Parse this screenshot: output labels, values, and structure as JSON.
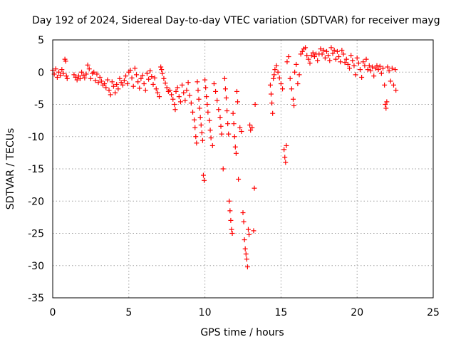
{
  "chart_data": {
    "type": "scatter",
    "title": "Day 192 of 2024, Sidereal Day-to-day VTEC variation (SDTVAR) for receiver mayg",
    "xlabel": "GPS time / hours",
    "ylabel": "SDTVAR / TECUs",
    "xlim": [
      0,
      25
    ],
    "ylim": [
      -35,
      5
    ],
    "xticks": [
      "0",
      "5",
      "10",
      "15",
      "20",
      "25"
    ],
    "yticks": [
      "5",
      "0",
      "-5",
      "-10",
      "-15",
      "-20",
      "-25",
      "-30",
      "-35"
    ],
    "grid": true,
    "marker": "+",
    "color": "#ff0000",
    "series": [
      {
        "name": "SDTVAR",
        "points": [
          [
            0.0,
            0.3
          ],
          [
            0.1,
            -0.3
          ],
          [
            0.2,
            0.5
          ],
          [
            0.3,
            -0.8
          ],
          [
            0.4,
            0.0
          ],
          [
            0.5,
            -0.5
          ],
          [
            0.6,
            0.4
          ],
          [
            0.7,
            -0.2
          ],
          [
            0.8,
            2.0
          ],
          [
            0.85,
            1.7
          ],
          [
            0.9,
            -0.6
          ],
          [
            0.95,
            -1.0
          ],
          [
            1.4,
            -0.4
          ],
          [
            1.5,
            -0.8
          ],
          [
            1.6,
            -1.2
          ],
          [
            1.7,
            -0.6
          ],
          [
            1.8,
            -1.0
          ],
          [
            1.9,
            0.0
          ],
          [
            2.0,
            -0.5
          ],
          [
            2.1,
            -0.9
          ],
          [
            2.2,
            -0.3
          ],
          [
            2.3,
            1.1
          ],
          [
            2.4,
            0.5
          ],
          [
            2.5,
            -1.0
          ],
          [
            2.6,
            -0.2
          ],
          [
            2.7,
            0.0
          ],
          [
            2.8,
            -1.3
          ],
          [
            2.9,
            -0.3
          ],
          [
            3.0,
            -1.6
          ],
          [
            3.1,
            -0.8
          ],
          [
            3.2,
            -1.4
          ],
          [
            3.3,
            -2.0
          ],
          [
            3.4,
            -1.8
          ],
          [
            3.5,
            -2.4
          ],
          [
            3.6,
            -1.2
          ],
          [
            3.7,
            -2.8
          ],
          [
            3.8,
            -3.5
          ],
          [
            3.9,
            -1.5
          ],
          [
            4.0,
            -2.2
          ],
          [
            4.1,
            -3.2
          ],
          [
            4.2,
            -1.9
          ],
          [
            4.3,
            -2.6
          ],
          [
            4.4,
            -1.0
          ],
          [
            4.5,
            -1.6
          ],
          [
            4.6,
            -2.0
          ],
          [
            4.7,
            -1.3
          ],
          [
            4.8,
            -0.6
          ],
          [
            4.9,
            -1.8
          ],
          [
            5.0,
            0.0
          ],
          [
            5.1,
            0.3
          ],
          [
            5.2,
            -0.9
          ],
          [
            5.3,
            -2.2
          ],
          [
            5.4,
            0.6
          ],
          [
            5.5,
            -0.4
          ],
          [
            5.6,
            -1.5
          ],
          [
            5.7,
            -2.5
          ],
          [
            5.8,
            -1.0
          ],
          [
            5.9,
            -0.5
          ],
          [
            6.0,
            -1.8
          ],
          [
            6.1,
            -2.8
          ],
          [
            6.2,
            -0.2
          ],
          [
            6.3,
            -1.1
          ],
          [
            6.4,
            0.2
          ],
          [
            6.5,
            -0.7
          ],
          [
            6.6,
            -1.9
          ],
          [
            6.7,
            -0.9
          ],
          [
            6.8,
            -2.6
          ],
          [
            6.9,
            -3.2
          ],
          [
            7.0,
            -3.8
          ],
          [
            7.1,
            0.8
          ],
          [
            7.15,
            0.4
          ],
          [
            7.2,
            -0.2
          ],
          [
            7.3,
            -1.0
          ],
          [
            7.4,
            -1.7
          ],
          [
            7.5,
            -2.4
          ],
          [
            7.6,
            -3.0
          ],
          [
            7.7,
            -2.8
          ],
          [
            7.8,
            -3.5
          ],
          [
            7.9,
            -4.2
          ],
          [
            8.0,
            -5.0
          ],
          [
            8.05,
            -5.8
          ],
          [
            8.1,
            -3.0
          ],
          [
            8.2,
            -2.4
          ],
          [
            8.3,
            -3.8
          ],
          [
            8.4,
            -4.6
          ],
          [
            8.5,
            -2.0
          ],
          [
            8.6,
            -3.2
          ],
          [
            8.7,
            -4.4
          ],
          [
            8.8,
            -2.8
          ],
          [
            8.9,
            -1.6
          ],
          [
            9.0,
            -3.6
          ],
          [
            9.1,
            -4.8
          ],
          [
            9.2,
            -6.2
          ],
          [
            9.3,
            -7.4
          ],
          [
            9.35,
            -8.6
          ],
          [
            9.4,
            -10.0
          ],
          [
            9.45,
            -11.0
          ],
          [
            9.5,
            -1.5
          ],
          [
            9.55,
            -2.8
          ],
          [
            9.6,
            -4.2
          ],
          [
            9.65,
            -5.6
          ],
          [
            9.7,
            -7.0
          ],
          [
            9.75,
            -8.2
          ],
          [
            9.8,
            -9.4
          ],
          [
            9.85,
            -10.6
          ],
          [
            9.9,
            -16.0
          ],
          [
            9.95,
            -16.8
          ],
          [
            10.0,
            -1.2
          ],
          [
            10.05,
            -2.4
          ],
          [
            10.1,
            -3.8
          ],
          [
            10.15,
            -5.0
          ],
          [
            10.2,
            -6.2
          ],
          [
            10.3,
            -7.5
          ],
          [
            10.35,
            -9.0
          ],
          [
            10.4,
            -10.2
          ],
          [
            10.5,
            -11.4
          ],
          [
            10.6,
            -1.8
          ],
          [
            10.7,
            -3.0
          ],
          [
            10.8,
            -4.4
          ],
          [
            10.9,
            -5.8
          ],
          [
            11.0,
            -7.0
          ],
          [
            11.05,
            -8.4
          ],
          [
            11.1,
            -9.6
          ],
          [
            11.2,
            -15.0
          ],
          [
            11.3,
            -1.0
          ],
          [
            11.35,
            -2.6
          ],
          [
            11.4,
            -4.0
          ],
          [
            11.45,
            -6.0
          ],
          [
            11.5,
            -8.0
          ],
          [
            11.55,
            -9.6
          ],
          [
            11.6,
            -20.0
          ],
          [
            11.65,
            -21.5
          ],
          [
            11.7,
            -23.0
          ],
          [
            11.75,
            -24.4
          ],
          [
            11.8,
            -25.0
          ],
          [
            11.85,
            -6.4
          ],
          [
            11.9,
            -8.0
          ],
          [
            11.95,
            -10.0
          ],
          [
            12.0,
            -11.6
          ],
          [
            12.05,
            -12.6
          ],
          [
            12.1,
            -3.0
          ],
          [
            12.15,
            -4.6
          ],
          [
            12.2,
            -16.6
          ],
          [
            12.3,
            -8.6
          ],
          [
            12.4,
            -9.2
          ],
          [
            12.5,
            -21.8
          ],
          [
            12.55,
            -23.2
          ],
          [
            12.6,
            -26.0
          ],
          [
            12.65,
            -27.4
          ],
          [
            12.7,
            -28.2
          ],
          [
            12.75,
            -29.0
          ],
          [
            12.8,
            -30.2
          ],
          [
            12.85,
            -24.4
          ],
          [
            12.9,
            -25.2
          ],
          [
            12.95,
            -8.2
          ],
          [
            13.0,
            -9.0
          ],
          [
            13.1,
            -8.6
          ],
          [
            13.2,
            -24.6
          ],
          [
            13.25,
            -18.0
          ],
          [
            13.3,
            -5.0
          ],
          [
            14.3,
            -2.0
          ],
          [
            14.35,
            -3.4
          ],
          [
            14.4,
            -4.8
          ],
          [
            14.45,
            -6.4
          ],
          [
            14.5,
            -1.0
          ],
          [
            14.55,
            -0.4
          ],
          [
            14.6,
            0.4
          ],
          [
            14.7,
            1.0
          ],
          [
            14.8,
            0.0
          ],
          [
            14.9,
            -0.9
          ],
          [
            15.0,
            -1.8
          ],
          [
            15.1,
            -2.6
          ],
          [
            15.2,
            -12.0
          ],
          [
            15.25,
            -13.2
          ],
          [
            15.3,
            -14.0
          ],
          [
            15.35,
            -11.4
          ],
          [
            15.4,
            1.6
          ],
          [
            15.5,
            2.4
          ],
          [
            15.6,
            -1.0
          ],
          [
            15.7,
            -2.6
          ],
          [
            15.8,
            -4.2
          ],
          [
            15.85,
            -5.2
          ],
          [
            15.9,
            0.0
          ],
          [
            16.0,
            1.2
          ],
          [
            16.1,
            -1.8
          ],
          [
            16.2,
            -0.4
          ],
          [
            16.3,
            2.8
          ],
          [
            16.4,
            3.2
          ],
          [
            16.5,
            3.6
          ],
          [
            16.6,
            3.8
          ],
          [
            16.7,
            2.6
          ],
          [
            16.8,
            2.0
          ],
          [
            16.9,
            1.4
          ],
          [
            17.0,
            2.6
          ],
          [
            17.1,
            3.0
          ],
          [
            17.2,
            2.4
          ],
          [
            17.3,
            2.8
          ],
          [
            17.4,
            1.8
          ],
          [
            17.5,
            2.8
          ],
          [
            17.6,
            3.6
          ],
          [
            17.7,
            2.8
          ],
          [
            17.8,
            3.4
          ],
          [
            17.9,
            2.2
          ],
          [
            18.0,
            3.2
          ],
          [
            18.1,
            2.6
          ],
          [
            18.2,
            1.8
          ],
          [
            18.3,
            3.8
          ],
          [
            18.4,
            2.9
          ],
          [
            18.5,
            3.4
          ],
          [
            18.6,
            2.0
          ],
          [
            18.7,
            3.2
          ],
          [
            18.8,
            2.4
          ],
          [
            18.9,
            1.6
          ],
          [
            19.0,
            3.4
          ],
          [
            19.1,
            2.8
          ],
          [
            19.2,
            1.5
          ],
          [
            19.3,
            2.0
          ],
          [
            19.4,
            1.2
          ],
          [
            19.5,
            0.6
          ],
          [
            19.6,
            2.6
          ],
          [
            19.7,
            1.8
          ],
          [
            19.8,
            1.0
          ],
          [
            19.9,
            -0.4
          ],
          [
            20.0,
            2.2
          ],
          [
            20.1,
            1.4
          ],
          [
            20.2,
            0.4
          ],
          [
            20.3,
            -0.8
          ],
          [
            20.4,
            1.6
          ],
          [
            20.5,
            1.0
          ],
          [
            20.6,
            2.0
          ],
          [
            20.7,
            0.4
          ],
          [
            20.8,
            1.0
          ],
          [
            20.9,
            0.2
          ],
          [
            21.0,
            0.8
          ],
          [
            21.1,
            -0.6
          ],
          [
            21.2,
            0.6
          ],
          [
            21.3,
            1.0
          ],
          [
            21.4,
            0.4
          ],
          [
            21.5,
            0.9
          ],
          [
            21.6,
            -0.2
          ],
          [
            21.7,
            0.6
          ],
          [
            21.8,
            -2.0
          ],
          [
            21.85,
            -5.0
          ],
          [
            21.9,
            -5.6
          ],
          [
            21.95,
            -4.6
          ],
          [
            22.0,
            0.8
          ],
          [
            22.1,
            0.2
          ],
          [
            22.2,
            -1.4
          ],
          [
            22.3,
            0.6
          ],
          [
            22.4,
            -2.0
          ],
          [
            22.5,
            0.4
          ],
          [
            22.55,
            -2.8
          ]
        ]
      }
    ]
  }
}
